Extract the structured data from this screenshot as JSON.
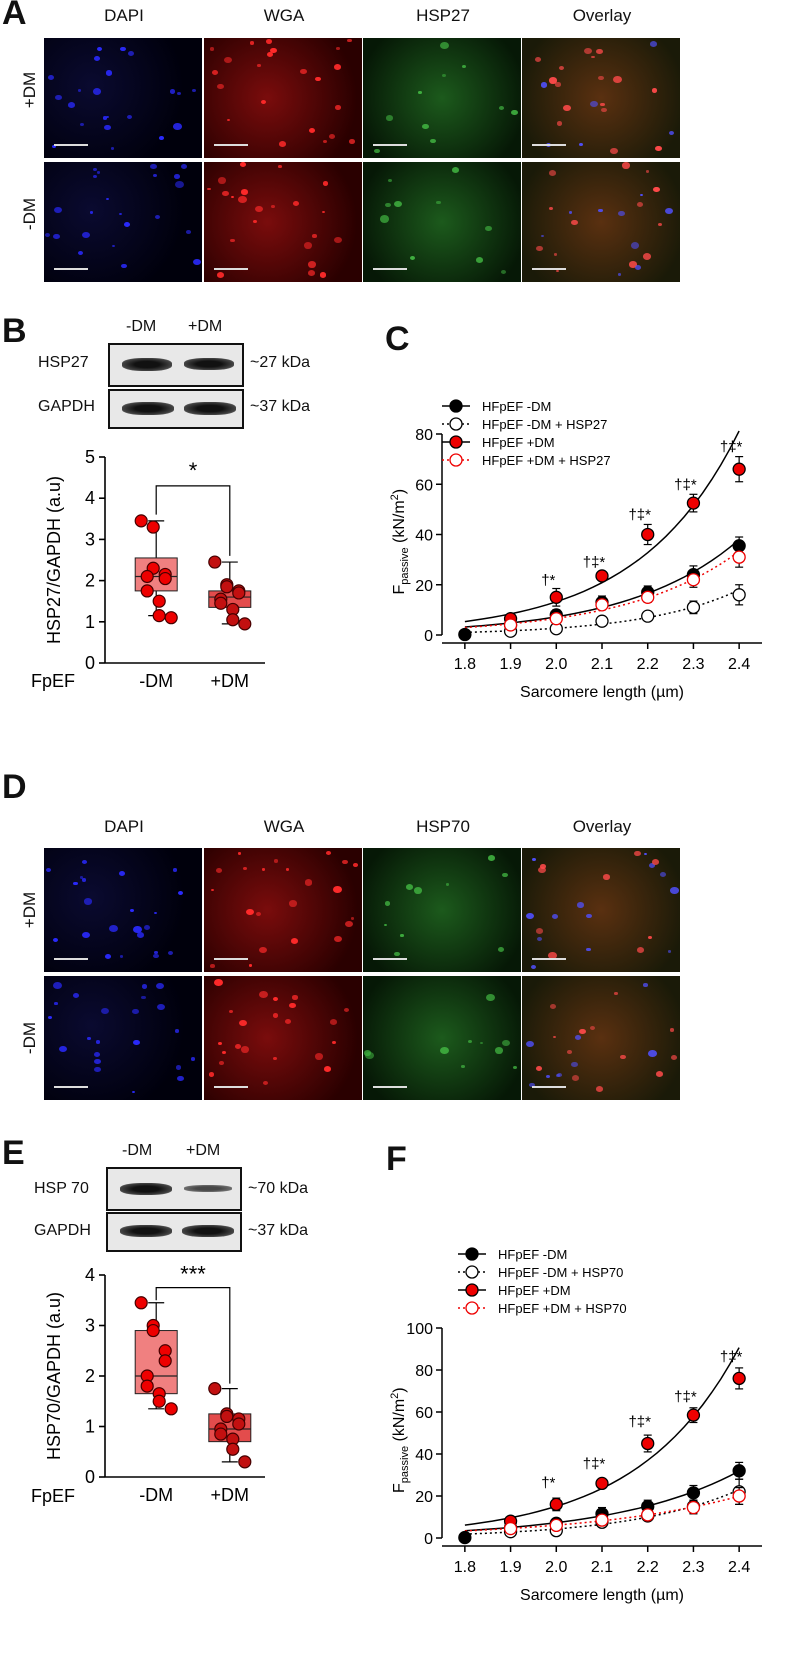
{
  "panels": {
    "A": {
      "letter": "A",
      "headers": [
        "DAPI",
        "WGA",
        "HSP27",
        "Overlay"
      ],
      "rows": [
        "+DM",
        "-DM"
      ]
    },
    "B": {
      "letter": "B",
      "blot_columns": [
        "-DM",
        "+DM"
      ],
      "blot_rows": [
        {
          "name": "HSP27",
          "kda": "~27 kDa"
        },
        {
          "name": "GAPDH",
          "kda": "~37 kDa"
        }
      ],
      "ylabel": "HSP27/GAPDH (a.u)",
      "group_label": "HFpEF",
      "significance": "*"
    },
    "C": {
      "letter": "C",
      "ylabel_main": "F",
      "ylabel_sub": "passive",
      "ylabel_unit": " (kN/m",
      "ylabel_sup": "2",
      "ylabel_close": ")",
      "xlabel": "Sarcomere length (µm)"
    },
    "D": {
      "letter": "D",
      "headers": [
        "DAPI",
        "WGA",
        "HSP70",
        "Overlay"
      ],
      "rows": [
        "+DM",
        "-DM"
      ]
    },
    "E": {
      "letter": "E",
      "blot_columns": [
        "-DM",
        "+DM"
      ],
      "blot_rows": [
        {
          "name": "HSP 70",
          "kda": "~70 kDa"
        },
        {
          "name": "GAPDH",
          "kda": "~37 kDa"
        }
      ],
      "ylabel": "HSP70/GAPDH (a.u)",
      "group_label": "HFpEF",
      "significance": "***"
    },
    "F": {
      "letter": "F",
      "ylabel_main": "F",
      "ylabel_sub": "passive",
      "ylabel_unit": " (kN/m",
      "ylabel_sup": "2",
      "ylabel_close": ")",
      "xlabel": "Sarcomere length (µm)"
    }
  },
  "chart_data": [
    {
      "id": "B",
      "type": "box",
      "categories": [
        "-DM",
        "+DM"
      ],
      "ylim": [
        0,
        5
      ],
      "yticks": [
        0,
        1,
        2,
        3,
        4,
        5
      ],
      "boxes": [
        {
          "min": 1.15,
          "q1": 1.75,
          "median": 2.1,
          "q3": 2.55,
          "max": 3.45,
          "points": [
            3.45,
            3.3,
            2.3,
            2.15,
            2.05,
            2.1,
            1.75,
            1.5,
            1.15,
            1.1
          ]
        },
        {
          "min": 0.95,
          "q1": 1.35,
          "median": 1.6,
          "q3": 1.75,
          "max": 2.45,
          "points": [
            2.45,
            1.9,
            1.85,
            1.75,
            1.7,
            1.55,
            1.45,
            1.3,
            1.05,
            0.95
          ]
        }
      ],
      "colors": [
        "#f08080",
        "#e34c4c"
      ]
    },
    {
      "id": "C",
      "type": "scatter",
      "x": [
        1.8,
        1.9,
        2.0,
        2.1,
        2.2,
        2.3,
        2.4
      ],
      "xlim": [
        1.75,
        2.45
      ],
      "ylim": [
        0,
        80
      ],
      "yticks": [
        0,
        20,
        40,
        60,
        80
      ],
      "series": [
        {
          "name": "HFpEF -DM",
          "fill": "#000",
          "stroke": "#000",
          "line": "solid",
          "lineColor": "#000",
          "y": [
            0.2,
            4,
            8,
            13,
            17,
            24,
            35.5
          ],
          "err": [
            0,
            1.5,
            2,
            2.5,
            2.5,
            3.5,
            3.5
          ]
        },
        {
          "name": "HFpEF -DM + HSP27",
          "fill": "#fff",
          "stroke": "#000",
          "line": "dotted",
          "lineColor": "#000",
          "y": [
            null,
            1.5,
            2.5,
            5.5,
            7.5,
            11,
            16
          ],
          "err": [
            0,
            0.8,
            1,
            1.5,
            1.5,
            2.5,
            4
          ]
        },
        {
          "name": "HFpEF +DM",
          "fill": "#e00",
          "stroke": "#000",
          "line": "solid",
          "lineColor": "#000",
          "y": [
            null,
            6.5,
            15,
            23.5,
            40,
            52.5,
            66
          ],
          "err": [
            0,
            1.5,
            3.5,
            1.5,
            4,
            3.5,
            5
          ]
        },
        {
          "name": "HFpEF +DM + HSP27",
          "fill": "#fff",
          "stroke": "#e00",
          "line": "dotted",
          "lineColor": "#e00",
          "y": [
            null,
            4,
            6.5,
            12,
            15,
            22,
            31
          ],
          "err": [
            0,
            1,
            1.5,
            2,
            2,
            3,
            4
          ]
        }
      ],
      "annotations": [
        {
          "x": 2.0,
          "text": "†*",
          "y": 20
        },
        {
          "x": 2.1,
          "text": "†‡*",
          "y": 27
        },
        {
          "x": 2.2,
          "text": "†‡*",
          "y": 46
        },
        {
          "x": 2.3,
          "text": "†‡*",
          "y": 58
        },
        {
          "x": 2.4,
          "text": "†‡*",
          "y": 73
        }
      ]
    },
    {
      "id": "E",
      "type": "box",
      "categories": [
        "-DM",
        "+DM"
      ],
      "ylim": [
        0,
        4
      ],
      "yticks": [
        0,
        1,
        2,
        3,
        4
      ],
      "boxes": [
        {
          "min": 1.35,
          "q1": 1.65,
          "median": 2.0,
          "q3": 2.9,
          "max": 3.45,
          "points": [
            3.45,
            3.0,
            2.9,
            2.5,
            2.3,
            2.0,
            1.8,
            1.65,
            1.5,
            1.35
          ]
        },
        {
          "min": 0.3,
          "q1": 0.7,
          "median": 0.95,
          "q3": 1.25,
          "max": 1.75,
          "points": [
            1.75,
            1.25,
            1.2,
            1.15,
            1.05,
            0.95,
            0.85,
            0.75,
            0.55,
            0.3
          ]
        }
      ],
      "colors": [
        "#f08080",
        "#e34c4c"
      ]
    },
    {
      "id": "F",
      "type": "scatter",
      "x": [
        1.8,
        1.9,
        2.0,
        2.1,
        2.2,
        2.3,
        2.4
      ],
      "xlim": [
        1.75,
        2.45
      ],
      "ylim": [
        0,
        100
      ],
      "yticks": [
        0,
        20,
        40,
        60,
        80,
        100
      ],
      "series": [
        {
          "name": "HFpEF -DM",
          "fill": "#000",
          "stroke": "#000",
          "line": "solid",
          "lineColor": "#000",
          "y": [
            0.2,
            5,
            7,
            11.5,
            15,
            21.5,
            32
          ],
          "err": [
            0,
            1.5,
            2,
            3,
            3,
            3.5,
            4
          ]
        },
        {
          "name": "HFpEF -DM + HSP70",
          "fill": "#fff",
          "stroke": "#000",
          "line": "dotted",
          "lineColor": "#000",
          "y": [
            null,
            3,
            3.5,
            7.5,
            10.5,
            15,
            22
          ],
          "err": [
            0,
            1,
            1.5,
            2,
            2,
            3,
            6
          ]
        },
        {
          "name": "HFpEF +DM",
          "fill": "#e00",
          "stroke": "#000",
          "line": "solid",
          "lineColor": "#000",
          "y": [
            null,
            8,
            16,
            26,
            45,
            58.5,
            76
          ],
          "err": [
            0,
            2,
            3,
            1.5,
            4,
            3.5,
            5
          ]
        },
        {
          "name": "HFpEF +DM + HSP70",
          "fill": "#fff",
          "stroke": "#e00",
          "line": "dotted",
          "lineColor": "#e00",
          "y": [
            null,
            4.5,
            6,
            8.5,
            11,
            14.5,
            20
          ],
          "err": [
            0,
            1,
            1.5,
            2,
            2,
            3,
            4
          ]
        }
      ],
      "annotations": [
        {
          "x": 2.0,
          "text": "†*",
          "y": 24
        },
        {
          "x": 2.1,
          "text": "†‡*",
          "y": 33
        },
        {
          "x": 2.2,
          "text": "†‡*",
          "y": 53
        },
        {
          "x": 2.3,
          "text": "†‡*",
          "y": 65
        },
        {
          "x": 2.4,
          "text": "†‡*",
          "y": 84
        }
      ]
    }
  ]
}
